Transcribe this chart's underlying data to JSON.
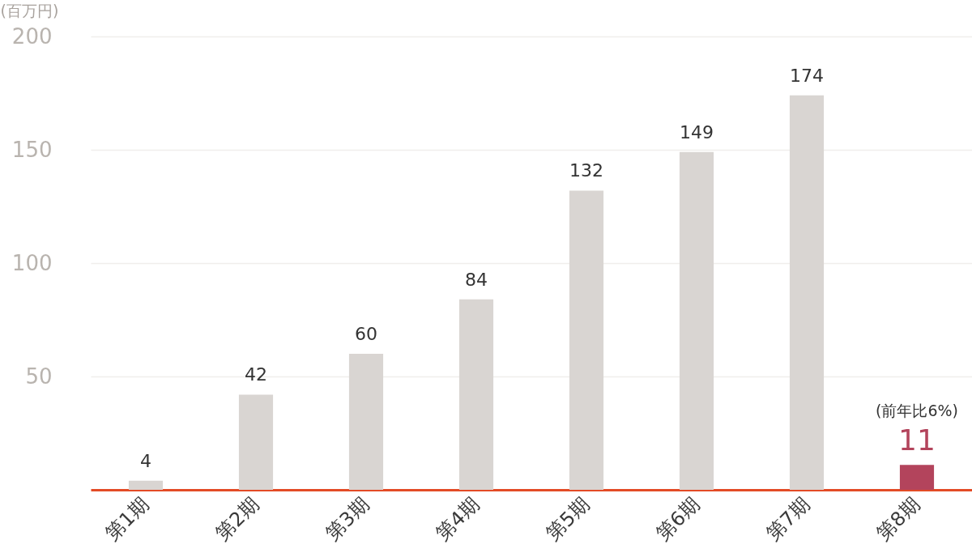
{
  "chart_data": {
    "type": "bar",
    "ylabel": "(百万円)",
    "categories": [
      "第1期",
      "第2期",
      "第3期",
      "第4期",
      "第5期",
      "第6期",
      "第7期",
      "第8期"
    ],
    "values": [
      4,
      42,
      60,
      84,
      132,
      149,
      174,
      11
    ],
    "color": "#d9d5d2",
    "colors": [
      "#d9d5d2",
      "#d9d5d2",
      "#d9d5d2",
      "#d9d5d2",
      "#d9d5d2",
      "#d9d5d2",
      "#d9d5d2",
      "#b3445c"
    ],
    "ylim": [
      0,
      200
    ],
    "yticks": [
      50,
      100,
      150,
      200
    ],
    "grid": "y",
    "data_labels": true,
    "annotations": [
      {
        "text": "(前年比6%)",
        "x": "第8期",
        "y": 11
      }
    ]
  }
}
